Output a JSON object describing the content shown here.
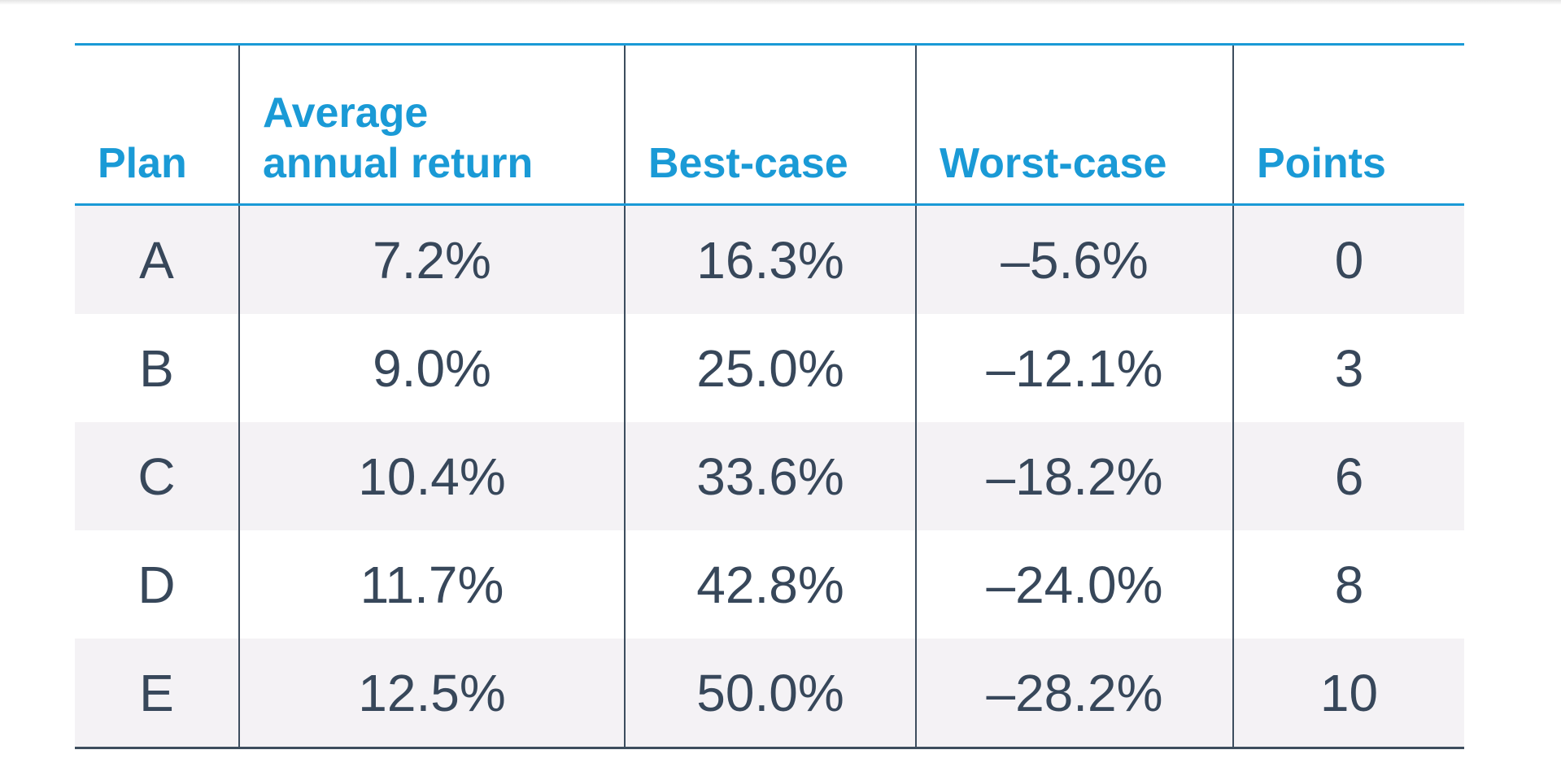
{
  "table": {
    "headers": {
      "plan": "Plan",
      "avg_line1": "Average",
      "avg_line2": "annual return",
      "best": "Best-case",
      "worst": "Worst-case",
      "points": "Points"
    },
    "rows": [
      {
        "plan": "A",
        "avg": "7.2%",
        "best": "16.3%",
        "worst": "–5.6%",
        "points": "0"
      },
      {
        "plan": "B",
        "avg": "9.0%",
        "best": "25.0%",
        "worst": "–12.1%",
        "points": "3"
      },
      {
        "plan": "C",
        "avg": "10.4%",
        "best": "33.6%",
        "worst": "–18.2%",
        "points": "6"
      },
      {
        "plan": "D",
        "avg": "11.7%",
        "best": "42.8%",
        "worst": "–24.0%",
        "points": "8"
      },
      {
        "plan": "E",
        "avg": "12.5%",
        "best": "50.0%",
        "worst": "–28.2%",
        "points": "10"
      }
    ]
  },
  "colors": {
    "header_accent": "#1a9ad6",
    "body_text": "#37475a",
    "row_shade": "#f4f2f5",
    "rule_dark": "#3d4d5e"
  }
}
